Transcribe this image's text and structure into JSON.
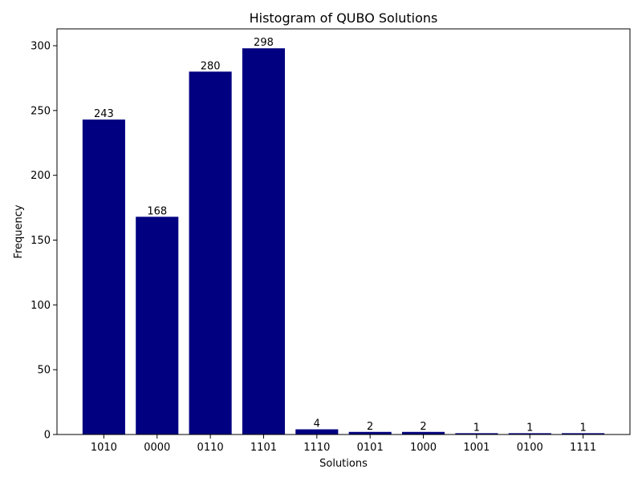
{
  "chart_data": {
    "type": "bar",
    "title": "Histogram of QUBO Solutions",
    "xlabel": "Solutions",
    "ylabel": "Frequency",
    "categories": [
      "1010",
      "0000",
      "0110",
      "1101",
      "1110",
      "0101",
      "1000",
      "1001",
      "0100",
      "1111"
    ],
    "values": [
      243,
      168,
      280,
      298,
      4,
      2,
      2,
      1,
      1,
      1
    ],
    "ylim": [
      0,
      313
    ],
    "yticks": [
      0,
      50,
      100,
      150,
      200,
      250,
      300
    ],
    "bar_color": "#000080",
    "grid": false,
    "data_labels": true
  }
}
